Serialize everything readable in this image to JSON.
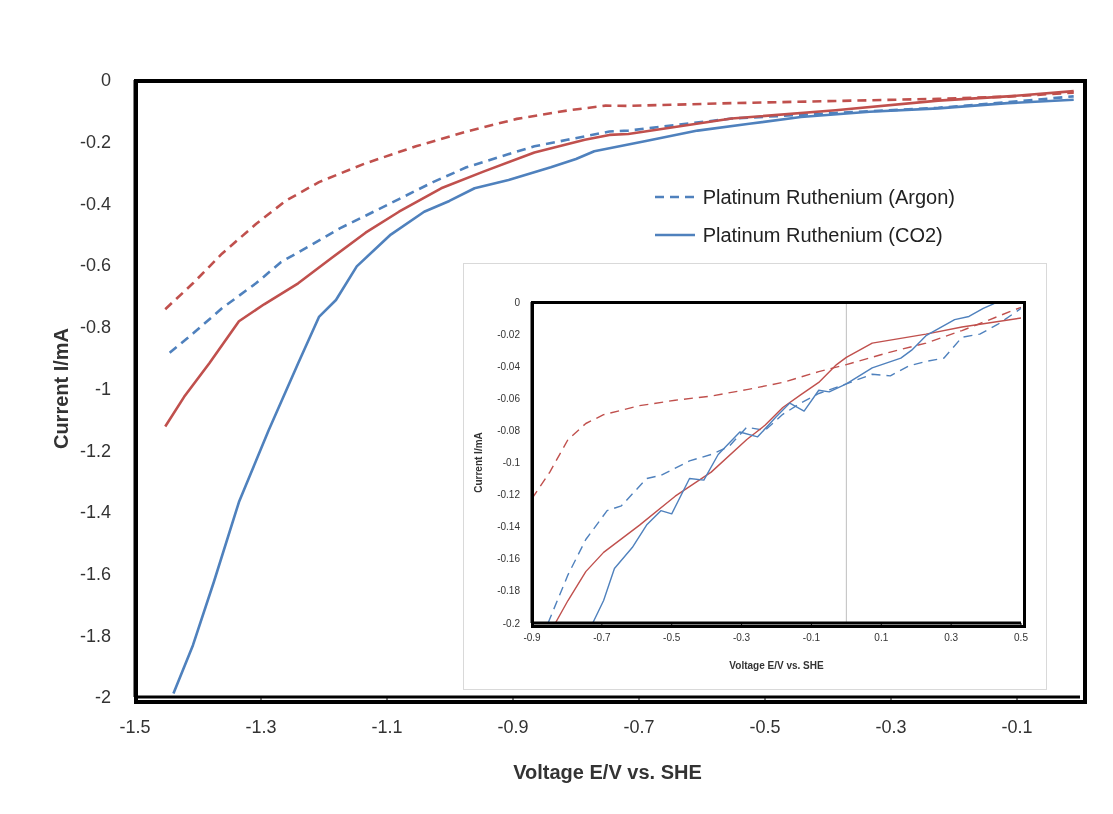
{
  "chart_data": [
    {
      "type": "line",
      "xlabel": "Voltage E/V vs. SHE",
      "ylabel": "Current I/mA",
      "xlim": [
        -1.5,
        0
      ],
      "xticks": [
        -1.5,
        -1.3,
        -1.1,
        -0.9,
        -0.7,
        -0.5,
        -0.3,
        -0.1
      ],
      "ylim": [
        -2,
        0
      ],
      "yticks": [
        0,
        -0.2,
        -0.4,
        -0.6,
        -0.8,
        -1,
        -1.2,
        -1.4,
        -1.6,
        -1.8,
        -2
      ],
      "grid": false,
      "legend": "top right",
      "marker": "none",
      "series": [
        {
          "color": "#c0504d",
          "line_style": "dashed",
          "x": [
            -1.452,
            -1.408,
            -1.362,
            -1.308,
            -1.261,
            -1.208,
            -1.134,
            -1.054,
            -0.974,
            -0.894,
            -0.814,
            -0.753,
            -0.717,
            -0.553,
            -0.388,
            -0.225,
            -0.115,
            -0.01
          ],
          "values": [
            -0.743,
            -0.659,
            -0.563,
            -0.467,
            -0.392,
            -0.331,
            -0.27,
            -0.215,
            -0.167,
            -0.126,
            -0.099,
            -0.083,
            -0.084,
            -0.075,
            -0.068,
            -0.061,
            -0.054,
            -0.041
          ]
        },
        {
          "name": "Platinum Ruthenium (Argon)",
          "color": "#4f81bd",
          "line_style": "dashed",
          "x": [
            -1.445,
            -1.408,
            -1.362,
            -1.308,
            -1.268,
            -1.221,
            -1.175,
            -1.134,
            -1.081,
            -1.027,
            -0.974,
            -0.921,
            -0.866,
            -0.814,
            -0.747,
            -0.717,
            -0.553,
            -0.388,
            -0.225,
            -0.115,
            -0.01
          ],
          "values": [
            -0.884,
            -0.822,
            -0.74,
            -0.659,
            -0.59,
            -0.536,
            -0.481,
            -0.44,
            -0.386,
            -0.331,
            -0.283,
            -0.249,
            -0.215,
            -0.194,
            -0.167,
            -0.164,
            -0.125,
            -0.107,
            -0.09,
            -0.072,
            -0.053
          ]
        },
        {
          "color": "#c0504d",
          "line_style": "solid",
          "x": [
            -1.452,
            -1.422,
            -1.382,
            -1.335,
            -1.295,
            -1.241,
            -1.188,
            -1.134,
            -1.081,
            -1.014,
            -0.947,
            -0.866,
            -0.786,
            -0.747,
            -0.717,
            -0.553,
            -0.388,
            -0.225,
            -0.115,
            -0.01
          ],
          "values": [
            -1.123,
            -1.027,
            -0.918,
            -0.782,
            -0.727,
            -0.659,
            -0.577,
            -0.495,
            -0.427,
            -0.351,
            -0.297,
            -0.235,
            -0.194,
            -0.178,
            -0.175,
            -0.125,
            -0.098,
            -0.067,
            -0.053,
            -0.036
          ]
        },
        {
          "name": "Platinum Ruthenium (CO2)",
          "color": "#4f81bd",
          "line_style": "solid",
          "x": [
            -1.439,
            -1.408,
            -1.375,
            -1.335,
            -1.288,
            -1.241,
            -1.208,
            -1.181,
            -1.148,
            -1.094,
            -1.041,
            -1.001,
            -0.961,
            -0.907,
            -0.84,
            -0.8,
            -0.771,
            -0.689,
            -0.607,
            -0.525,
            -0.443,
            -0.334,
            -0.225,
            -0.115,
            -0.01
          ],
          "values": [
            -1.989,
            -1.832,
            -1.628,
            -1.368,
            -1.136,
            -0.918,
            -0.768,
            -0.713,
            -0.604,
            -0.501,
            -0.427,
            -0.392,
            -0.351,
            -0.324,
            -0.283,
            -0.256,
            -0.231,
            -0.198,
            -0.164,
            -0.142,
            -0.12,
            -0.103,
            -0.092,
            -0.075,
            -0.064
          ]
        }
      ]
    },
    {
      "type": "line",
      "xlabel": "Voltage E/V vs. SHE",
      "ylabel": "Current I/mA",
      "xlim": [
        -0.9,
        0.5
      ],
      "xticks": [
        -0.9,
        -0.7,
        -0.5,
        -0.3,
        -0.1,
        0.1,
        0.3,
        0.5
      ],
      "ylim": [
        -0.2,
        0
      ],
      "yticks": [
        0,
        -0.02,
        -0.04,
        -0.06,
        -0.08,
        -0.1,
        -0.12,
        -0.14,
        -0.16,
        -0.18,
        -0.2
      ],
      "grid": false,
      "marker": "none",
      "ref_lines": [
        {
          "axis": "x",
          "value": 0,
          "color": "#bfbfbf"
        }
      ],
      "series": [
        {
          "color": "#c0504d",
          "line_style": "dashed",
          "x": [
            -0.9,
            -0.849,
            -0.797,
            -0.746,
            -0.695,
            -0.592,
            -0.49,
            -0.387,
            -0.285,
            -0.182,
            -0.079,
            0,
            0.126,
            0.228,
            0.331,
            0.5
          ],
          "values": [
            -0.1225,
            -0.106,
            -0.0857,
            -0.0757,
            -0.0702,
            -0.0646,
            -0.0612,
            -0.0586,
            -0.0546,
            -0.0501,
            -0.0434,
            -0.039,
            -0.0312,
            -0.0256,
            -0.0178,
            -0.0033
          ]
        },
        {
          "color": "#4f81bd",
          "line_style": "dashed",
          "x": [
            -0.854,
            -0.797,
            -0.746,
            -0.685,
            -0.644,
            -0.572,
            -0.531,
            -0.449,
            -0.387,
            -0.336,
            -0.285,
            -0.233,
            -0.182,
            -0.131,
            -0.079,
            0,
            0.074,
            0.126,
            0.177,
            0.228,
            0.279,
            0.331,
            0.382,
            0.433,
            0.5
          ],
          "values": [
            -0.2,
            -0.17,
            -0.148,
            -0.13,
            -0.127,
            -0.11,
            -0.108,
            -0.099,
            -0.095,
            -0.09,
            -0.078,
            -0.08,
            -0.07,
            -0.063,
            -0.057,
            -0.051,
            -0.045,
            -0.046,
            -0.04,
            -0.037,
            -0.035,
            -0.022,
            -0.02,
            -0.014,
            -0.004
          ]
        },
        {
          "color": "#c0504d",
          "line_style": "solid",
          "x": [
            -0.833,
            -0.797,
            -0.746,
            -0.695,
            -0.592,
            -0.49,
            -0.387,
            -0.285,
            -0.233,
            -0.182,
            -0.131,
            -0.079,
            -0.028,
            0,
            0.074,
            0.228,
            0.331,
            0.5
          ],
          "values": [
            -0.2,
            -0.186,
            -0.168,
            -0.156,
            -0.139,
            -0.121,
            -0.106,
            -0.0857,
            -0.0768,
            -0.0657,
            -0.0579,
            -0.0501,
            -0.039,
            -0.0345,
            -0.0256,
            -0.02,
            -0.0156,
            -0.01
          ]
        },
        {
          "color": "#4f81bd",
          "line_style": "solid",
          "x": [
            -0.726,
            -0.695,
            -0.664,
            -0.613,
            -0.572,
            -0.531,
            -0.5,
            -0.449,
            -0.408,
            -0.367,
            -0.305,
            -0.254,
            -0.203,
            -0.162,
            -0.121,
            -0.079,
            -0.049,
            0,
            0.074,
            0.156,
            0.187,
            0.228,
            0.31,
            0.351,
            0.392,
            0.423
          ],
          "values": [
            -0.2,
            -0.186,
            -0.166,
            -0.153,
            -0.139,
            -0.13,
            -0.132,
            -0.11,
            -0.111,
            -0.095,
            -0.081,
            -0.084,
            -0.072,
            -0.063,
            -0.068,
            -0.055,
            -0.056,
            -0.051,
            -0.041,
            -0.035,
            -0.03,
            -0.021,
            -0.011,
            -0.009,
            -0.004,
            -0.001
          ]
        }
      ]
    }
  ]
}
